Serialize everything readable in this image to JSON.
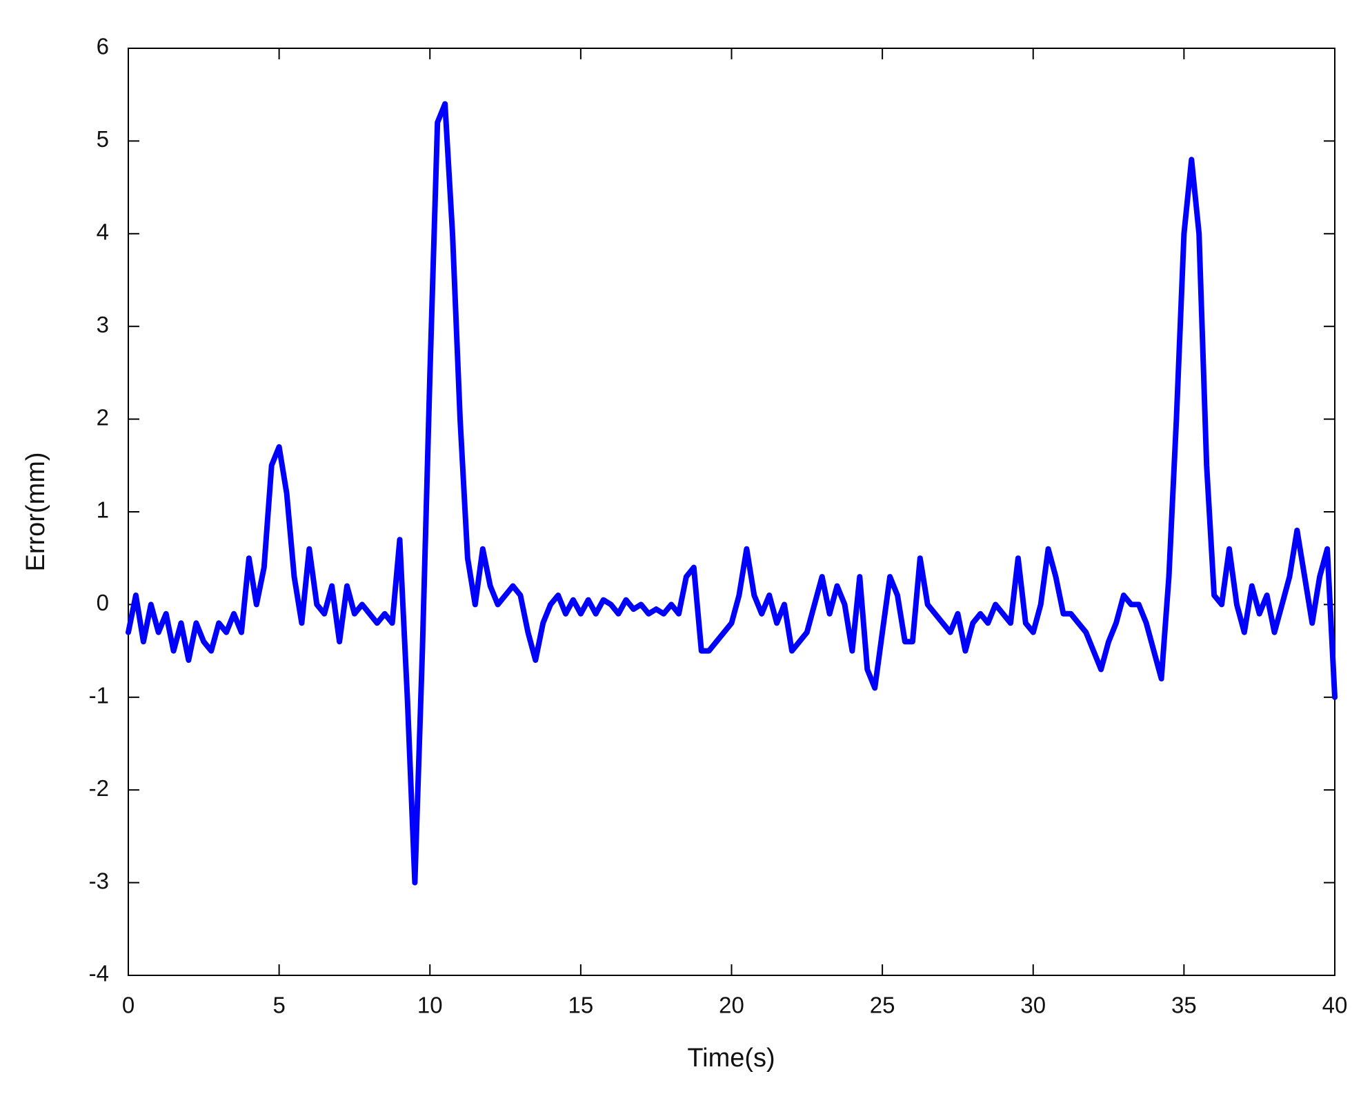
{
  "chart_data": {
    "type": "line",
    "xlabel": "Time(s)",
    "ylabel": "Error(mm)",
    "xlim": [
      0,
      40
    ],
    "ylim": [
      -4,
      6
    ],
    "xticks": [
      0,
      5,
      10,
      15,
      20,
      25,
      30,
      35,
      40
    ],
    "yticks": [
      -4,
      -3,
      -2,
      -1,
      0,
      1,
      2,
      3,
      4,
      5,
      6
    ],
    "grid": false,
    "x": [
      0,
      0.25,
      0.5,
      0.75,
      1,
      1.25,
      1.5,
      1.75,
      2,
      2.25,
      2.5,
      2.75,
      3,
      3.25,
      3.5,
      3.75,
      4,
      4.25,
      4.5,
      4.75,
      5,
      5.25,
      5.5,
      5.75,
      6,
      6.25,
      6.5,
      6.75,
      7,
      7.25,
      7.5,
      7.75,
      8,
      8.25,
      8.5,
      8.75,
      9,
      9.25,
      9.5,
      9.75,
      10,
      10.25,
      10.5,
      10.75,
      11,
      11.25,
      11.5,
      11.75,
      12,
      12.25,
      12.5,
      12.75,
      13,
      13.25,
      13.5,
      13.75,
      14,
      14.25,
      14.5,
      14.75,
      15,
      15.25,
      15.5,
      15.75,
      16,
      16.25,
      16.5,
      16.75,
      17,
      17.25,
      17.5,
      17.75,
      18,
      18.25,
      18.5,
      18.75,
      19,
      19.25,
      19.5,
      19.75,
      20,
      20.25,
      20.5,
      20.75,
      21,
      21.25,
      21.5,
      21.75,
      22,
      22.25,
      22.5,
      22.75,
      23,
      23.25,
      23.5,
      23.75,
      24,
      24.25,
      24.5,
      24.75,
      25,
      25.25,
      25.5,
      25.75,
      26,
      26.25,
      26.5,
      26.75,
      27,
      27.25,
      27.5,
      27.75,
      28,
      28.25,
      28.5,
      28.75,
      29,
      29.25,
      29.5,
      29.75,
      30,
      30.25,
      30.5,
      30.75,
      31,
      31.25,
      31.5,
      31.75,
      32,
      32.25,
      32.5,
      32.75,
      33,
      33.25,
      33.5,
      33.75,
      34,
      34.25,
      34.5,
      34.75,
      35,
      35.25,
      35.5,
      35.75,
      36,
      36.25,
      36.5,
      36.75,
      37,
      37.25,
      37.5,
      37.75,
      38,
      38.25,
      38.5,
      38.75,
      39,
      39.25,
      39.5,
      39.75,
      40
    ],
    "series": [
      {
        "name": "Error",
        "color": "#0000ff",
        "values": [
          -0.3,
          0.1,
          -0.4,
          0.0,
          -0.3,
          -0.1,
          -0.5,
          -0.2,
          -0.6,
          -0.2,
          -0.4,
          -0.5,
          -0.2,
          -0.3,
          -0.1,
          -0.3,
          0.5,
          0.0,
          0.4,
          1.5,
          1.7,
          1.2,
          0.3,
          -0.2,
          0.6,
          0.0,
          -0.1,
          0.2,
          -0.4,
          0.2,
          -0.1,
          0.0,
          -0.1,
          -0.2,
          -0.1,
          -0.2,
          0.7,
          -1.0,
          -3.0,
          -0.5,
          2.5,
          5.2,
          5.4,
          4.0,
          2.0,
          0.5,
          0.0,
          0.6,
          0.2,
          0.0,
          0.1,
          0.2,
          0.1,
          -0.3,
          -0.6,
          -0.2,
          0.0,
          0.1,
          -0.1,
          0.05,
          -0.1,
          0.05,
          -0.1,
          0.05,
          0.0,
          -0.1,
          0.05,
          -0.05,
          0.0,
          -0.1,
          -0.05,
          -0.1,
          0.0,
          -0.1,
          0.3,
          0.4,
          -0.5,
          -0.5,
          -0.4,
          -0.3,
          -0.2,
          0.1,
          0.6,
          0.1,
          -0.1,
          0.1,
          -0.2,
          0.0,
          -0.5,
          -0.4,
          -0.3,
          0.0,
          0.3,
          -0.1,
          0.2,
          0.0,
          -0.5,
          0.3,
          -0.7,
          -0.9,
          -0.3,
          0.3,
          0.1,
          -0.4,
          -0.4,
          0.5,
          0.0,
          -0.1,
          -0.2,
          -0.3,
          -0.1,
          -0.5,
          -0.2,
          -0.1,
          -0.2,
          0.0,
          -0.1,
          -0.2,
          0.5,
          -0.2,
          -0.3,
          0.0,
          0.6,
          0.3,
          -0.1,
          -0.1,
          -0.2,
          -0.3,
          -0.5,
          -0.7,
          -0.4,
          -0.2,
          0.1,
          0.0,
          0.0,
          -0.2,
          -0.5,
          -0.8,
          0.3,
          2.0,
          4.0,
          4.8,
          4.0,
          1.5,
          0.1,
          0.0,
          0.6,
          0.0,
          -0.3,
          0.2,
          -0.1,
          0.1,
          -0.3,
          0.0,
          0.3,
          0.8,
          0.3,
          -0.2,
          0.3,
          0.6,
          -1.0
        ]
      }
    ]
  }
}
